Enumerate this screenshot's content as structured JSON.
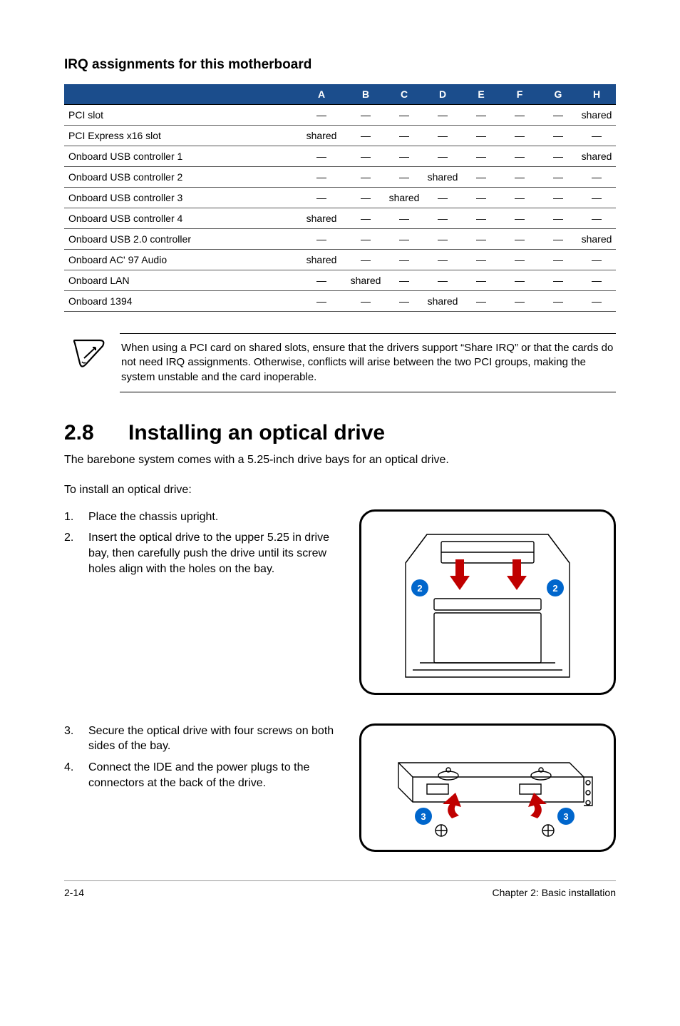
{
  "irq_section": {
    "heading": "IRQ assignments for this motherboard",
    "columns": [
      "",
      "A",
      "B",
      "C",
      "D",
      "E",
      "F",
      "G",
      "H"
    ],
    "rows": [
      {
        "label": "PCI slot",
        "cells": [
          "—",
          "—",
          "—",
          "—",
          "—",
          "—",
          "—",
          "shared"
        ]
      },
      {
        "label": "PCI Express x16 slot",
        "cells": [
          "shared",
          "—",
          "—",
          "—",
          "—",
          "—",
          "—",
          "—"
        ]
      },
      {
        "label": "Onboard USB controller 1",
        "cells": [
          "—",
          "—",
          "—",
          "—",
          "—",
          "—",
          "—",
          "shared"
        ]
      },
      {
        "label": "Onboard USB controller 2",
        "cells": [
          "—",
          "—",
          "—",
          "shared",
          "—",
          "—",
          "—",
          "—"
        ]
      },
      {
        "label": "Onboard USB controller 3",
        "cells": [
          "—",
          "—",
          "shared",
          "—",
          "—",
          "—",
          "—",
          "—"
        ]
      },
      {
        "label": "Onboard USB controller 4",
        "cells": [
          "shared",
          "—",
          "—",
          "—",
          "—",
          "—",
          "—",
          "—"
        ]
      },
      {
        "label": "Onboard USB 2.0 controller",
        "cells": [
          "—",
          "—",
          "—",
          "—",
          "—",
          "—",
          "—",
          "shared"
        ]
      },
      {
        "label": "Onboard AC' 97 Audio",
        "cells": [
          "shared",
          "—",
          "—",
          "—",
          "—",
          "—",
          "—",
          "—"
        ]
      },
      {
        "label": "Onboard LAN",
        "cells": [
          "—",
          "shared",
          "—",
          "—",
          "—",
          "—",
          "—",
          "—"
        ]
      },
      {
        "label": "Onboard 1394",
        "cells": [
          "—",
          "—",
          "—",
          "shared",
          "—",
          "—",
          "—",
          "—"
        ]
      }
    ],
    "header_bg": "#1b4d8c",
    "header_fg": "#ffffff"
  },
  "note": {
    "text": "When using a PCI card on shared slots, ensure that the drivers support “Share IRQ” or that the cards do not need IRQ assignments. Otherwise, conflicts will arise between the two PCI groups, making the system unstable and the card inoperable."
  },
  "section_2_8": {
    "number": "2.8",
    "title": "Installing an optical drive",
    "intro": "The barebone system comes with a 5.25-inch drive bays for an optical drive.",
    "subintro": "To install an optical drive:",
    "steps_group1": [
      {
        "n": "1.",
        "text": "Place the chassis upright."
      },
      {
        "n": "2.",
        "text": "Insert the optical drive to the upper 5.25 in drive bay, then carefully push the drive until its screw holes align with the holes on the bay."
      }
    ],
    "steps_group2": [
      {
        "n": "3.",
        "text": "Secure the optical drive with four screws on both sides of the bay."
      },
      {
        "n": "4.",
        "text": "Connect the IDE and the power plugs to the connectors at the back of the drive."
      }
    ],
    "illus1_badges": [
      "2",
      "2"
    ],
    "illus2_badges": [
      "3",
      "3"
    ]
  },
  "footer": {
    "left": "2-14",
    "right": "Chapter 2: Basic installation"
  },
  "colors": {
    "badge_fill": "#0066cc",
    "arrow_fill": "#c00000"
  }
}
